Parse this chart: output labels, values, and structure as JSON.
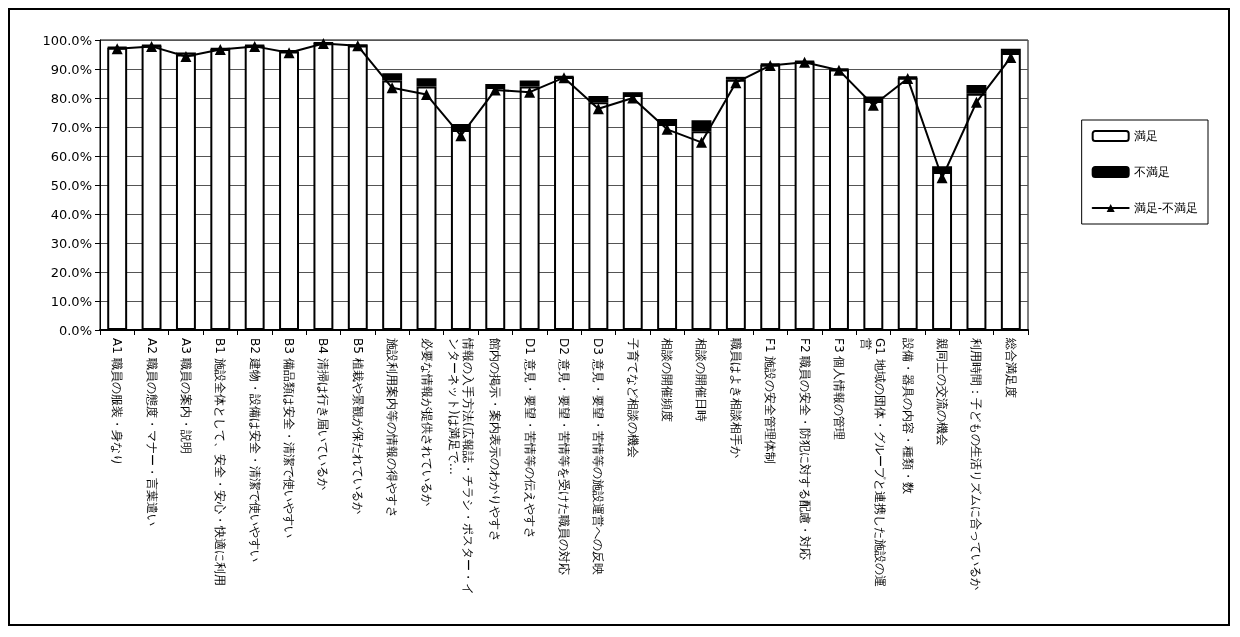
{
  "chart_data": {
    "type": "bar",
    "stacked": true,
    "grid": "y",
    "legend": "right",
    "marker": "triangle",
    "categories": [
      "A1 職員の服装・身なり",
      "A2 職員の態度・マナー・言葉遣い",
      "A3 職員の案内・説明",
      "B1 施設全体として、安全・安心・快適に利用",
      "B2 建物・設備は安全・清潔で使いやすい",
      "B3 備品類は安全・清潔で使いやすい",
      "B4 清掃は行き届いているか",
      "B5 植栽や景観が保たれているか",
      "施設利用案内等の情報の得やすさ",
      "必要な情報が提供されているか",
      "情報の入手方法(広報誌・チラシ・ポスター・インターネット)は満足で…",
      "館内の掲示・案内表示のわかりやすさ",
      "D1 意見・要望・苦情等の伝えやすさ",
      "D2 意見・要望・苦情等を受けた職員の対応",
      "D3 意見・要望・苦情等の施設運営への反映",
      "子育てなど相談の機会",
      "相談の開催頻度",
      "相談の開催日時",
      "職員はよき相談相手か",
      "F1 施設の安全管理体制",
      "F2 職員の安全・防犯に対する配慮・対応",
      "F3 個人情報の管理",
      "G1 地域の団体・グループと連携した施設の運営",
      "設備・器具の内容・種類・数",
      "親同士の交流の機会",
      "利用時間：子どもの生活リズムに合っているか",
      "総合満足度"
    ],
    "ylim": [
      0,
      100
    ],
    "yticks": [
      {
        "value": 0,
        "label": "0.0%"
      },
      {
        "value": 10,
        "label": "10.0%"
      },
      {
        "value": 20,
        "label": "20.0%"
      },
      {
        "value": 30,
        "label": "30.0%"
      },
      {
        "value": 40,
        "label": "40.0%"
      },
      {
        "value": 50,
        "label": "50.0%"
      },
      {
        "value": 60,
        "label": "60.0%"
      },
      {
        "value": 70,
        "label": "70.0%"
      },
      {
        "value": 80,
        "label": "80.0%"
      },
      {
        "value": 90,
        "label": "90.0%"
      },
      {
        "value": 100,
        "label": "100.0%"
      }
    ],
    "series": [
      {
        "name": "満足",
        "color": "#ffffff",
        "values": [
          97.3,
          98.0,
          95.0,
          96.9,
          98.0,
          96.0,
          98.9,
          98.1,
          86.0,
          84.0,
          69.0,
          83.8,
          84.0,
          87.2,
          78.5,
          81.0,
          71.0,
          68.5,
          86.3,
          91.5,
          92.5,
          89.8,
          79.0,
          87.0,
          54.5,
          81.5,
          95.5
        ]
      },
      {
        "name": "不満足",
        "color": "#000000",
        "values": [
          0.3,
          0.2,
          0.7,
          0.2,
          0.2,
          0.4,
          0.1,
          0.1,
          2.5,
          2.8,
          2.0,
          1.0,
          2.0,
          0.2,
          2.2,
          1.0,
          1.8,
          3.8,
          1.0,
          0.3,
          0.2,
          0.2,
          1.5,
          0.3,
          2.0,
          3.0,
          1.5
        ]
      },
      {
        "name": "満足-不満足",
        "type": "line",
        "color": "#000000",
        "values": [
          97.0,
          97.8,
          94.3,
          96.7,
          97.8,
          95.6,
          98.8,
          98.0,
          83.5,
          81.2,
          67.0,
          82.8,
          82.0,
          87.0,
          76.3,
          80.0,
          69.2,
          64.7,
          85.3,
          91.2,
          92.3,
          89.6,
          77.5,
          86.7,
          52.5,
          78.5,
          94.0
        ]
      }
    ]
  }
}
